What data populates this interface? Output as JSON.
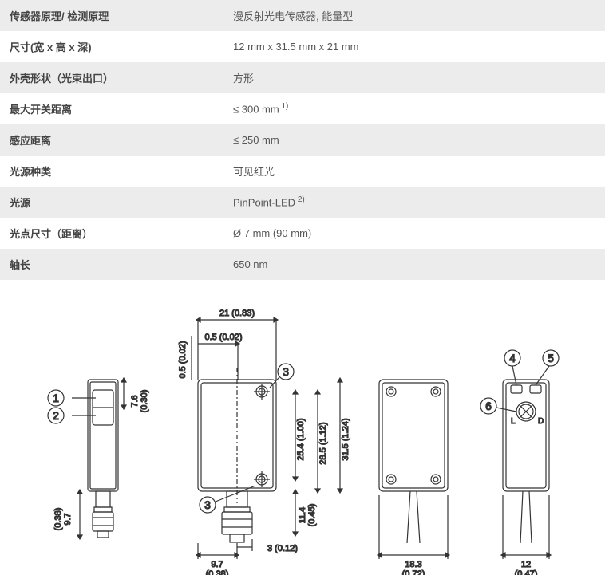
{
  "table": {
    "rows": [
      {
        "label": "传感器原理/ 检测原理",
        "value": "漫反射光电传感器, 能量型"
      },
      {
        "label": "尺寸(宽 x 高 x 深)",
        "value": "12 mm x 31.5 mm x 21 mm"
      },
      {
        "label": "外壳形状（光束出口）",
        "value": "方形"
      },
      {
        "label": "最大开关距离",
        "value": "≤ 300 mm",
        "sup": "1)"
      },
      {
        "label": "感应距离",
        "value": "≤ 250 mm"
      },
      {
        "label": "光源种类",
        "value": "可见红光"
      },
      {
        "label": "光源",
        "value": "PinPoint-LED",
        "sup": "2)"
      },
      {
        "label": "光点尺寸（距离）",
        "value": "Ø 7 mm (90 mm)"
      },
      {
        "label": "轴长",
        "value": "650 nm"
      }
    ]
  },
  "diagram": {
    "stroke": "#333333",
    "fill_none": "none",
    "dims": {
      "d_21": "21 (0.83)",
      "d_05a": "0.5 (0.02)",
      "d_05b": "0.5 (0.02)",
      "d_76": "7.6",
      "d_76p": "(0.30)",
      "d_97a": "9.7",
      "d_97ap": "(0.38)",
      "d_97b": "9.7",
      "d_97bp": "(0.38)",
      "d_3": "3 (0.12)",
      "d_254": "25.4 (1.00)",
      "d_285": "28.5 (1.12)",
      "d_315": "31.5 (1.24)",
      "d_114": "11.4",
      "d_114p": "(0.45)",
      "d_183": "18.3",
      "d_183p": "(0.72)",
      "d_12": "12",
      "d_12p": "(0.47)"
    },
    "callouts": [
      "1",
      "2",
      "3",
      "3",
      "4",
      "5",
      "6"
    ]
  }
}
